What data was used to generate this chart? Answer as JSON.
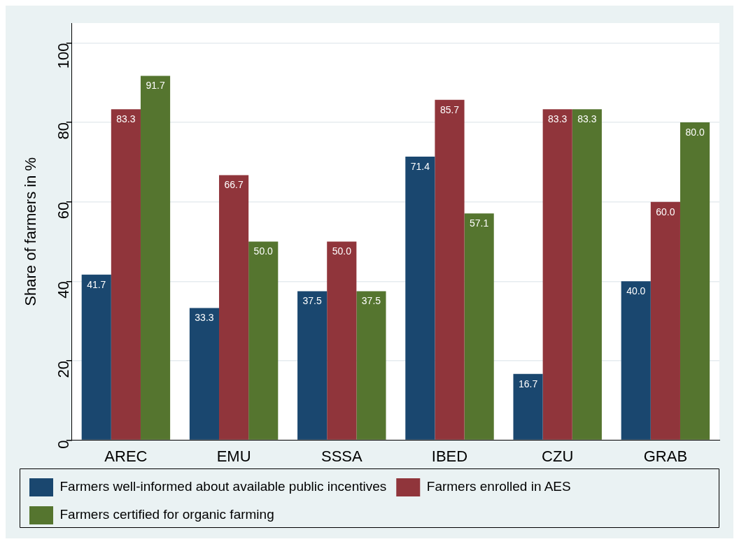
{
  "chart_data": {
    "type": "bar",
    "ylabel": "Share of farmers in %",
    "categories": [
      "AREC",
      "EMU",
      "SSSA",
      "IBED",
      "CZU",
      "GRAB"
    ],
    "series": [
      {
        "name": "Farmers well-informed about available public incentives",
        "color": "#1a476f",
        "values": [
          41.7,
          33.3,
          37.5,
          71.4,
          16.7,
          40.0
        ],
        "value_labels": [
          "41.7",
          "33.3",
          "37.5",
          "71.4",
          "16.7",
          "40.0"
        ]
      },
      {
        "name": "Farmers enrolled in AES",
        "color": "#90353b",
        "values": [
          83.3,
          66.7,
          50.0,
          85.7,
          83.3,
          60.0
        ],
        "value_labels": [
          "83.3",
          "66.7",
          "50.0",
          "85.7",
          "83.3",
          "60.0"
        ]
      },
      {
        "name": "Farmers certified for organic farming",
        "color": "#55752f",
        "values": [
          91.7,
          50.0,
          37.5,
          57.1,
          83.3,
          80.0
        ],
        "value_labels": [
          "91.7",
          "50.0",
          "37.5",
          "57.1",
          "83.3",
          "80.0"
        ]
      }
    ],
    "ylim": [
      0,
      105
    ],
    "yticks": [
      0,
      20,
      40,
      60,
      80,
      100
    ],
    "grid": "y",
    "legend": "bottom"
  }
}
